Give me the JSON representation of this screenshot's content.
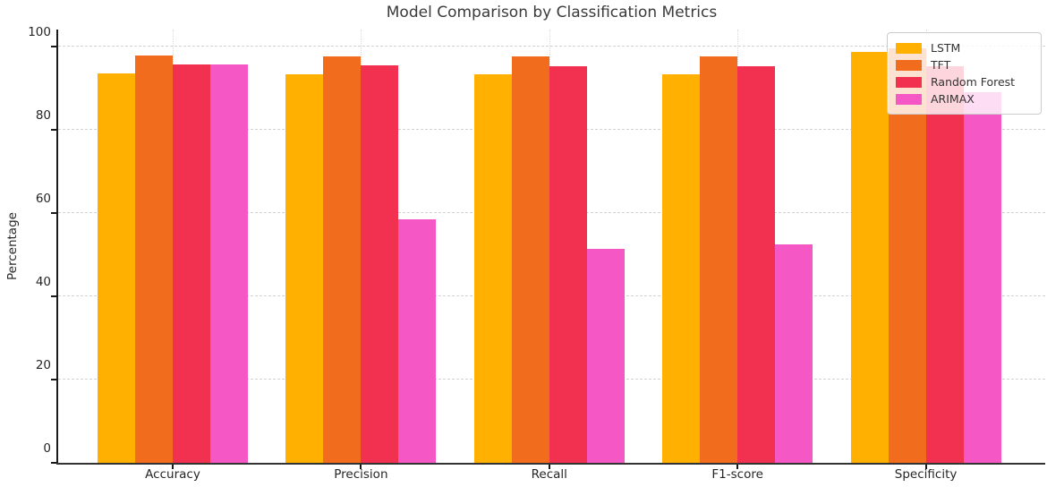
{
  "title": "Model Comparison by Classification Metrics",
  "chart_data": {
    "type": "bar",
    "title": "Model Comparison by Classification Metrics",
    "xlabel": "",
    "ylabel": "Percentage",
    "categories": [
      "Accuracy",
      "Precision",
      "Recall",
      "F1-score",
      "Specificity"
    ],
    "series": [
      {
        "name": "LSTM",
        "color": "#FFB000",
        "values": [
          93.4,
          93.3,
          93.3,
          93.3,
          98.6
        ]
      },
      {
        "name": "TFT",
        "color": "#F26C1D",
        "values": [
          97.8,
          97.6,
          97.5,
          97.5,
          99.5
        ]
      },
      {
        "name": "Random Forest",
        "color": "#F2304F",
        "values": [
          95.7,
          95.5,
          95.2,
          95.2,
          95.1
        ]
      },
      {
        "name": "ARIMAX",
        "color": "#F557C5",
        "values": [
          95.7,
          58.5,
          51.3,
          52.5,
          89.0
        ]
      }
    ],
    "ylim": [
      0,
      104
    ],
    "yticks": [
      0,
      20,
      40,
      60,
      80,
      100
    ],
    "grid": true,
    "gridline_style": "dashed",
    "legend_position": "upper right",
    "background_color": "#ffffff"
  }
}
